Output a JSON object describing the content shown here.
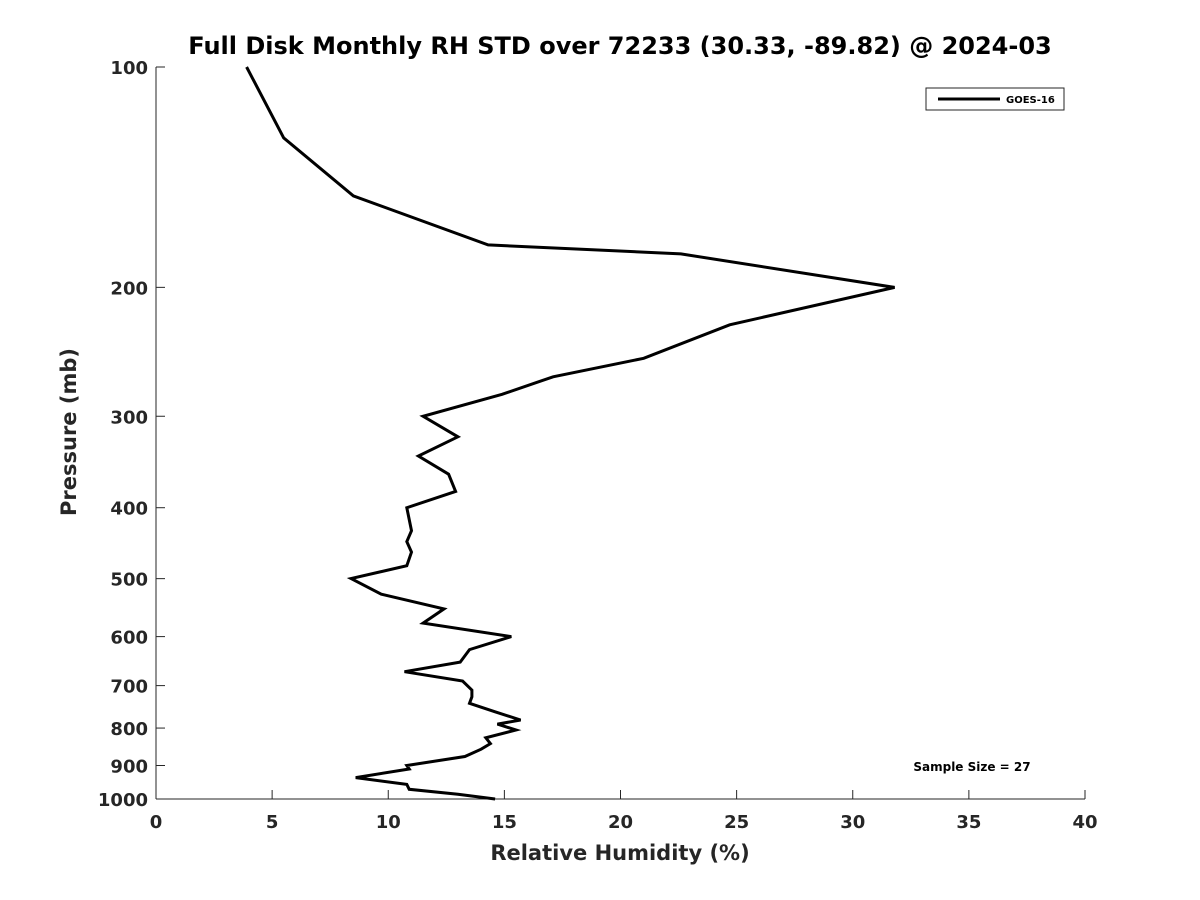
{
  "chart_data": {
    "type": "line",
    "title": "Full Disk Monthly RH STD over 72233 (30.33, -89.82) @ 2024-03",
    "xlabel": "Relative Humidity (%)",
    "ylabel": "Pressure (mb)",
    "xlim": [
      0,
      40
    ],
    "ylim": [
      1000,
      100
    ],
    "y_scale": "log",
    "x_ticks": [
      0,
      5,
      10,
      15,
      20,
      25,
      30,
      35,
      40
    ],
    "x_tick_labels": [
      "0",
      "5",
      "10",
      "15",
      "20",
      "25",
      "30",
      "35",
      "40"
    ],
    "y_ticks": [
      100,
      200,
      300,
      400,
      500,
      600,
      700,
      800,
      900,
      1000
    ],
    "y_tick_labels": [
      "100",
      "200",
      "300",
      "400",
      "500",
      "600",
      "700",
      "800",
      "900",
      "1000"
    ],
    "grid": false,
    "legend_position": "top-right",
    "series": [
      {
        "name": "GOES-16",
        "color": "#000000",
        "points": [
          [
            3.9,
            100
          ],
          [
            5.5,
            125
          ],
          [
            8.5,
            150
          ],
          [
            14.3,
            175
          ],
          [
            22.6,
            180
          ],
          [
            31.8,
            200
          ],
          [
            24.7,
            225
          ],
          [
            21.0,
            250
          ],
          [
            17.1,
            265
          ],
          [
            14.9,
            280
          ],
          [
            11.5,
            300
          ],
          [
            13.0,
            320
          ],
          [
            11.3,
            340
          ],
          [
            12.6,
            360
          ],
          [
            12.9,
            380
          ],
          [
            10.8,
            400
          ],
          [
            11.0,
            430
          ],
          [
            10.8,
            445
          ],
          [
            11.0,
            460
          ],
          [
            10.8,
            480
          ],
          [
            8.4,
            500
          ],
          [
            9.7,
            525
          ],
          [
            12.4,
            550
          ],
          [
            11.5,
            575
          ],
          [
            15.3,
            600
          ],
          [
            13.5,
            625
          ],
          [
            13.1,
            650
          ],
          [
            10.7,
            670
          ],
          [
            13.2,
            690
          ],
          [
            13.6,
            710
          ],
          [
            13.6,
            725
          ],
          [
            13.5,
            740
          ],
          [
            14.6,
            760
          ],
          [
            15.7,
            780
          ],
          [
            14.7,
            790
          ],
          [
            15.5,
            805
          ],
          [
            14.2,
            825
          ],
          [
            14.4,
            840
          ],
          [
            14.0,
            855
          ],
          [
            13.3,
            875
          ],
          [
            10.8,
            900
          ],
          [
            10.9,
            910
          ],
          [
            8.6,
            935
          ],
          [
            10.8,
            955
          ],
          [
            10.9,
            970
          ],
          [
            13.0,
            985
          ],
          [
            14.6,
            1000
          ]
        ]
      }
    ],
    "annotations": [
      "Sample Size = 27"
    ]
  }
}
